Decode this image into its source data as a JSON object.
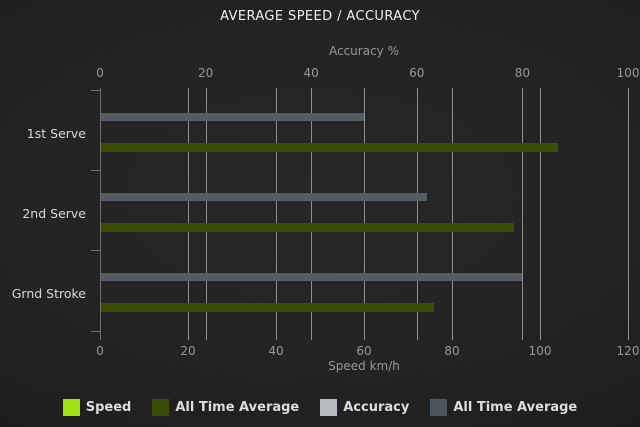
{
  "title": "AVERAGE SPEED / ACCURACY",
  "chart_data": {
    "type": "bar",
    "orientation": "horizontal",
    "grid": true,
    "legend_position": "bottom",
    "categories": [
      "1st Serve",
      "2nd Serve",
      "Grnd Stroke"
    ],
    "axes": {
      "top": {
        "label": "Accuracy %",
        "min": 0,
        "max": 100,
        "ticks": [
          0,
          20,
          40,
          60,
          80,
          100
        ]
      },
      "bottom": {
        "label": "Speed km/h",
        "min": 0,
        "max": 120,
        "ticks": [
          0,
          20,
          40,
          60,
          80,
          100,
          120
        ]
      }
    },
    "series": [
      {
        "name": "Speed",
        "axis": "bottom",
        "color": "#a0e216",
        "plotted": false,
        "values": [
          null,
          null,
          null
        ]
      },
      {
        "name": "All Time Average",
        "axis": "bottom",
        "color": "#3b4e04",
        "plotted": true,
        "values": [
          104,
          94,
          76
        ]
      },
      {
        "name": "Accuracy",
        "axis": "top",
        "color": "#b5bac0",
        "plotted": false,
        "values": [
          null,
          null,
          null
        ]
      },
      {
        "name": "All Time Average",
        "axis": "top",
        "color": "#565c64",
        "plotted": true,
        "values": [
          50,
          62,
          80
        ]
      }
    ]
  },
  "legend": [
    {
      "label": "Speed",
      "color": "#a0e216"
    },
    {
      "label": "All Time Average",
      "color": "#3b4e04"
    },
    {
      "label": "Accuracy",
      "color": "#b5bac0"
    },
    {
      "label": "All Time Average",
      "color": "#4d565f"
    }
  ],
  "colors": {
    "background": "#1e1e1e",
    "title_text": "#efefef",
    "axis_text": "#979797",
    "category_text": "#d8d8d8",
    "gridline": "#8f8f8f",
    "speed_average_bar": "#3b4e04",
    "accuracy_average_bar": "#565c64"
  }
}
